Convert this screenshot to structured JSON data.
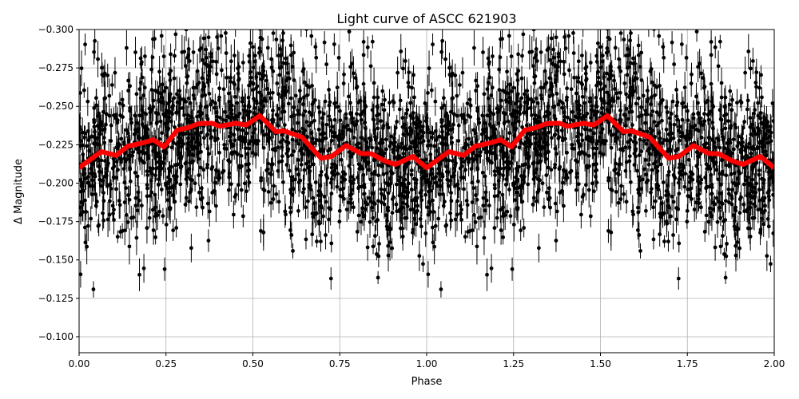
{
  "chart_data": {
    "type": "scatter",
    "title": "Light curve of ASCC 621903",
    "xlabel": "Phase",
    "ylabel": "Δ Magnitude",
    "xlim": [
      0.0,
      2.0
    ],
    "ylim": [
      -0.3,
      -0.0896
    ],
    "y_inverted": true,
    "grid": true,
    "x_ticks": [
      "0.00",
      "0.25",
      "0.50",
      "0.75",
      "1.00",
      "1.25",
      "1.50",
      "1.75",
      "2.00"
    ],
    "y_ticks": [
      "−0.300",
      "−0.275",
      "−0.250",
      "−0.225",
      "−0.200",
      "−0.175",
      "−0.150",
      "−0.125",
      "−0.100"
    ],
    "x_tick_values": [
      0,
      0.25,
      0.5,
      0.75,
      1,
      1.25,
      1.5,
      1.75,
      2
    ],
    "y_tick_values": [
      -0.3,
      -0.275,
      -0.25,
      -0.225,
      -0.2,
      -0.175,
      -0.15,
      -0.125,
      -0.1
    ],
    "series": [
      {
        "kind": "observations with error bars",
        "color": "#000000",
        "periodic_in_phase": 1.0,
        "typical_scatter_mag": 0.03
      },
      {
        "kind": "binned mean curve",
        "color": "#ff0000",
        "x": [
          0.0,
          0.064,
          0.106,
          0.14,
          0.19,
          0.213,
          0.244,
          0.282,
          0.313,
          0.343,
          0.382,
          0.405,
          0.451,
          0.481,
          0.52,
          0.566,
          0.589,
          0.641,
          0.696,
          0.726,
          0.768,
          0.811,
          0.841,
          0.88,
          0.91,
          0.96,
          1.0
        ],
        "y": [
          -0.21,
          -0.2205,
          -0.218,
          -0.224,
          -0.2266,
          -0.2283,
          -0.2236,
          -0.2345,
          -0.236,
          -0.2387,
          -0.239,
          -0.237,
          -0.239,
          -0.2378,
          -0.2439,
          -0.2335,
          -0.234,
          -0.23,
          -0.2162,
          -0.2174,
          -0.2245,
          -0.2193,
          -0.2191,
          -0.2144,
          -0.2122,
          -0.2174,
          -0.21
        ]
      }
    ]
  }
}
